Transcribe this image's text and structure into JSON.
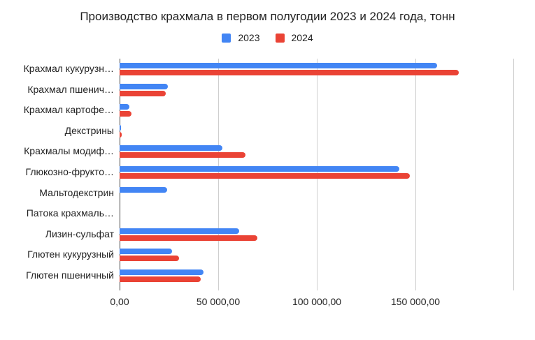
{
  "chart_data": {
    "type": "bar",
    "orientation": "horizontal",
    "title": "Производство крахмала в первом полугодии 2023 и 2024 года, тонн",
    "xlabel": "",
    "ylabel": "",
    "xlim": [
      0,
      200000
    ],
    "grid": true,
    "legend_position": "top",
    "categories": [
      "Крахмал кукурузн…",
      "Крахмал пшенич…",
      "Крахмал картофе…",
      "Декстрины",
      "Крахмалы модиф…",
      "Глюкозно-фрукто…",
      "Мальтодекстрин",
      "Патока крахмаль…",
      "Лизин-сульфат",
      "Глютен кукурузный",
      "Глютен пшеничный"
    ],
    "series": [
      {
        "name": "2023",
        "color": "#4285f4",
        "values": [
          161000,
          24500,
          5000,
          700,
          52000,
          142000,
          24000,
          0,
          60500,
          26500,
          42500
        ]
      },
      {
        "name": "2024",
        "color": "#ea4335",
        "values": [
          172000,
          23500,
          6000,
          1000,
          64000,
          147000,
          0,
          0,
          70000,
          30000,
          41000
        ]
      }
    ],
    "x_ticks": [
      {
        "value": 0,
        "label": "0,00"
      },
      {
        "value": 50000,
        "label": "50 000,00"
      },
      {
        "value": 100000,
        "label": "100 000,00"
      },
      {
        "value": 150000,
        "label": "150 000,00"
      },
      {
        "value": 200000,
        "label": ""
      }
    ]
  }
}
